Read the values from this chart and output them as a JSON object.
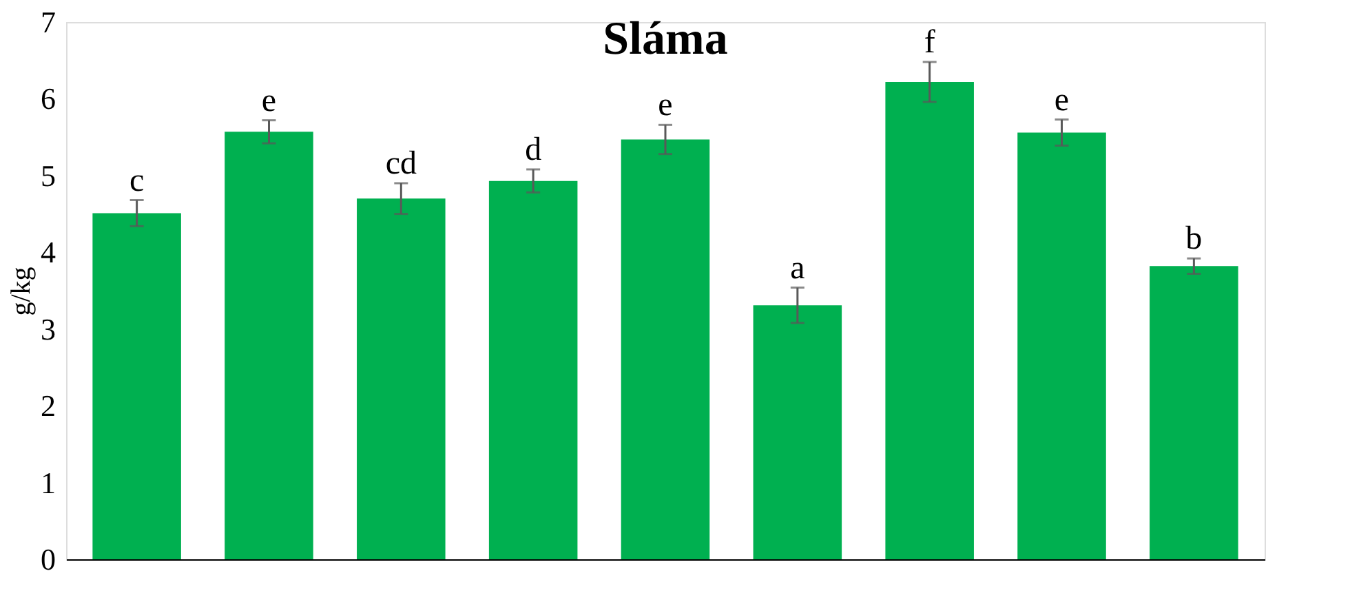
{
  "chart_data": {
    "type": "bar",
    "title": "Sláma",
    "ylabel": "g/kg",
    "categories": [
      null,
      null,
      null,
      null,
      null,
      null,
      null,
      null,
      null
    ],
    "values": [
      4.51,
      5.57,
      4.7,
      4.93,
      5.47,
      3.31,
      6.22,
      5.56,
      3.82
    ],
    "errors": [
      0.17,
      0.15,
      0.2,
      0.15,
      0.19,
      0.23,
      0.26,
      0.17,
      0.1
    ],
    "value_labels": [
      "c",
      "e",
      "cd",
      "d",
      "e",
      "a",
      "f",
      "e",
      "b"
    ],
    "color": "#00b050",
    "ylim": [
      0,
      7
    ],
    "yticks": [
      0,
      1,
      2,
      3,
      4,
      5,
      6,
      7
    ],
    "tick_labels": "y"
  }
}
